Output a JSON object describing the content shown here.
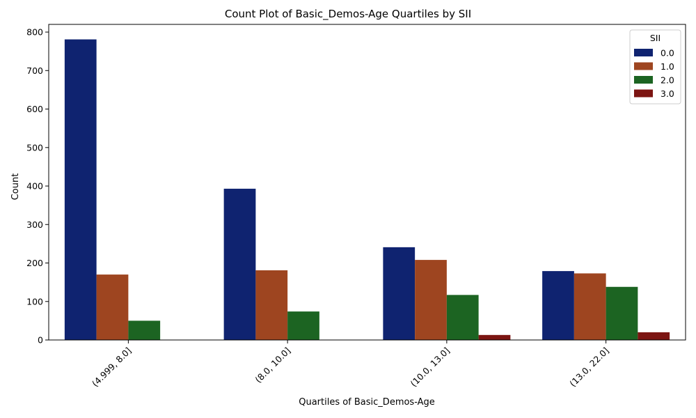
{
  "chart_data": {
    "type": "bar",
    "title": "Count Plot of Basic_Demos-Age Quartiles by SII",
    "xlabel": "Quartiles of Basic_Demos-Age",
    "ylabel": "Count",
    "categories": [
      "(4.999, 8.0]",
      "(8.0, 10.0]",
      "(10.0, 13.0]",
      "(13.0, 22.0]"
    ],
    "series": [
      {
        "name": "0.0",
        "color": "#0f2370",
        "values": [
          781,
          393,
          241,
          179
        ]
      },
      {
        "name": "1.0",
        "color": "#9e4520",
        "values": [
          170,
          181,
          208,
          173
        ]
      },
      {
        "name": "2.0",
        "color": "#1c6422",
        "values": [
          50,
          74,
          117,
          138
        ]
      },
      {
        "name": "3.0",
        "color": "#7c1512",
        "values": [
          0,
          0,
          13,
          20
        ]
      }
    ],
    "ylim": [
      0,
      820
    ],
    "yticks": [
      0,
      100,
      200,
      300,
      400,
      500,
      600,
      700,
      800
    ],
    "legend": {
      "title": "SII",
      "placement": "top-right"
    },
    "grid": false,
    "xtick_rotation": 45
  }
}
